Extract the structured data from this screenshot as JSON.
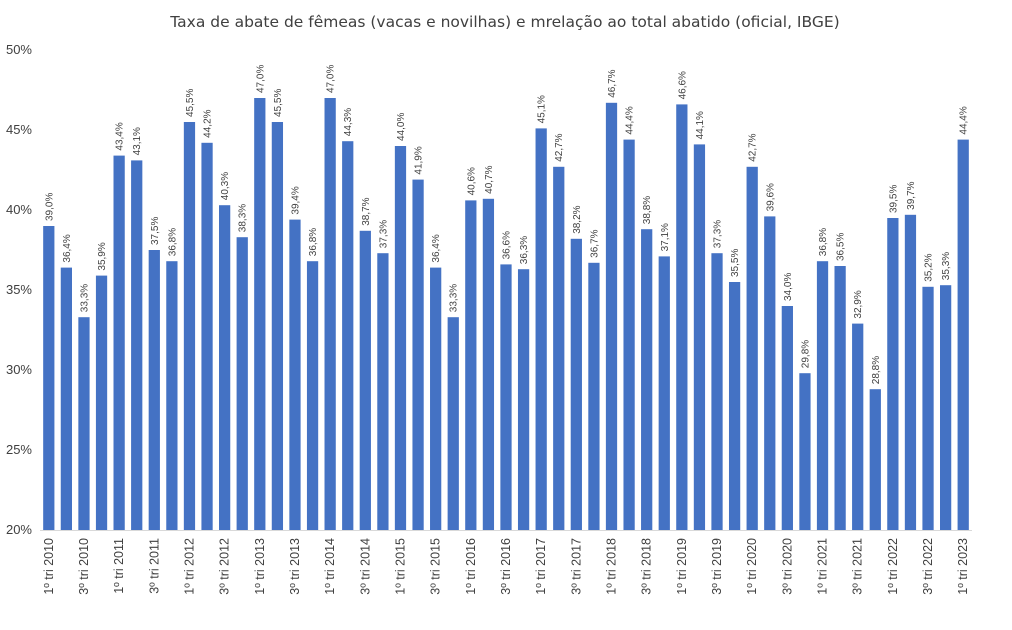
{
  "chart_data": {
    "type": "bar",
    "title": "Taxa de abate de fêmeas (vacas e novilhas) e mrelação ao total abatido (oficial, IBGE)",
    "xlabel": "",
    "ylabel": "",
    "ylim": [
      20,
      50
    ],
    "yticks": [
      "20%",
      "25%",
      "30%",
      "35%",
      "40%",
      "45%",
      "50%"
    ],
    "ytick_values": [
      20,
      25,
      30,
      35,
      40,
      45,
      50
    ],
    "grid": false,
    "legend": "none",
    "bar_color": "#4472C4",
    "categories": [
      "1º tri 2010",
      "2º tri 2010",
      "3º tri 2010",
      "4º tri 2010",
      "1º tri 2011",
      "2º tri 2011",
      "3º tri 2011",
      "4º tri 2011",
      "1º tri 2012",
      "2º tri 2012",
      "3º tri 2012",
      "4º tri 2012",
      "1º tri 2013",
      "2º tri 2013",
      "3º tri 2013",
      "4º tri 2013",
      "1º tri 2014",
      "2º tri 2014",
      "3º tri 2014",
      "4º tri 2014",
      "1º tri 2015",
      "2º tri 2015",
      "3º tri 2015",
      "4º tri 2015",
      "1º tri 2016",
      "2º tri 2016",
      "3º tri 2016",
      "4º tri 2016",
      "1º tri 2017",
      "2º tri 2017",
      "3º tri 2017",
      "4º tri 2017",
      "1º tri 2018",
      "2º tri 2018",
      "3º tri 2018",
      "4º tri 2018",
      "1º tri 2019",
      "2º tri 2019",
      "3º tri 2019",
      "4º tri 2019",
      "1º tri 2020",
      "2º tri 2020",
      "3º tri 2020",
      "4º tri 2020",
      "1º tri 2021",
      "2º tri 2021",
      "3º tri 2021",
      "4º tri 2021",
      "1º tri 2022",
      "2º tri 2022",
      "3º tri 2022",
      "4º tri 2022",
      "1º tri 2023"
    ],
    "shown_categories": [
      "1º tri 2010",
      "3º tri 2010",
      "1º tri 2011",
      "3º tri 2011",
      "1º tri 2012",
      "3º tri 2012",
      "1º tri 2013",
      "3º tri 2013",
      "1º tri 2014",
      "3º tri 2014",
      "1º tri 2015",
      "3º tri 2015",
      "1º tri 2016",
      "3º tri 2016",
      "1º tri 2017",
      "3º tri 2017",
      "1º tri 2018",
      "3º tri 2018",
      "1º tri 2019",
      "3º tri 2019",
      "1º tri 2020",
      "3º tri 2020",
      "1º tri 2021",
      "3º tri 2021",
      "1º tri 2022",
      "3º tri 2022",
      "1º tri 2023"
    ],
    "values": [
      39.0,
      36.4,
      33.3,
      35.9,
      43.4,
      43.1,
      37.5,
      36.8,
      45.5,
      44.2,
      40.3,
      38.3,
      47.0,
      45.5,
      39.4,
      36.8,
      47.0,
      44.3,
      38.7,
      37.3,
      44.0,
      41.9,
      36.4,
      33.3,
      40.6,
      40.7,
      36.6,
      36.3,
      45.1,
      42.7,
      38.2,
      36.7,
      46.7,
      44.4,
      38.8,
      37.1,
      46.6,
      44.1,
      37.3,
      35.5,
      42.7,
      39.6,
      34.0,
      29.8,
      36.8,
      36.5,
      32.9,
      28.8,
      39.5,
      39.7,
      35.2,
      35.3,
      44.4
    ],
    "data_labels": [
      "39,0%",
      "36,4%",
      "33,3%",
      "35,9%",
      "43,4%",
      "43,1%",
      "37,5%",
      "36,8%",
      "45,5%",
      "44,2%",
      "40,3%",
      "38,3%",
      "47,0%",
      "45,5%",
      "39,4%",
      "36,8%",
      "47,0%",
      "44,3%",
      "38,7%",
      "37,3%",
      "44,0%",
      "41,9%",
      "36,4%",
      "33,3%",
      "40,6%",
      "40,7%",
      "36,6%",
      "36,3%",
      "45,1%",
      "42,7%",
      "38,2%",
      "36,7%",
      "46,7%",
      "44,4%",
      "38,8%",
      "37,1%",
      "46,6%",
      "44,1%",
      "37,3%",
      "35,5%",
      "42,7%",
      "39,6%",
      "34,0%",
      "29,8%",
      "36,8%",
      "36,5%",
      "32,9%",
      "28,8%",
      "39,5%",
      "39,7%",
      "35,2%",
      "35,3%",
      "44,4%"
    ]
  }
}
